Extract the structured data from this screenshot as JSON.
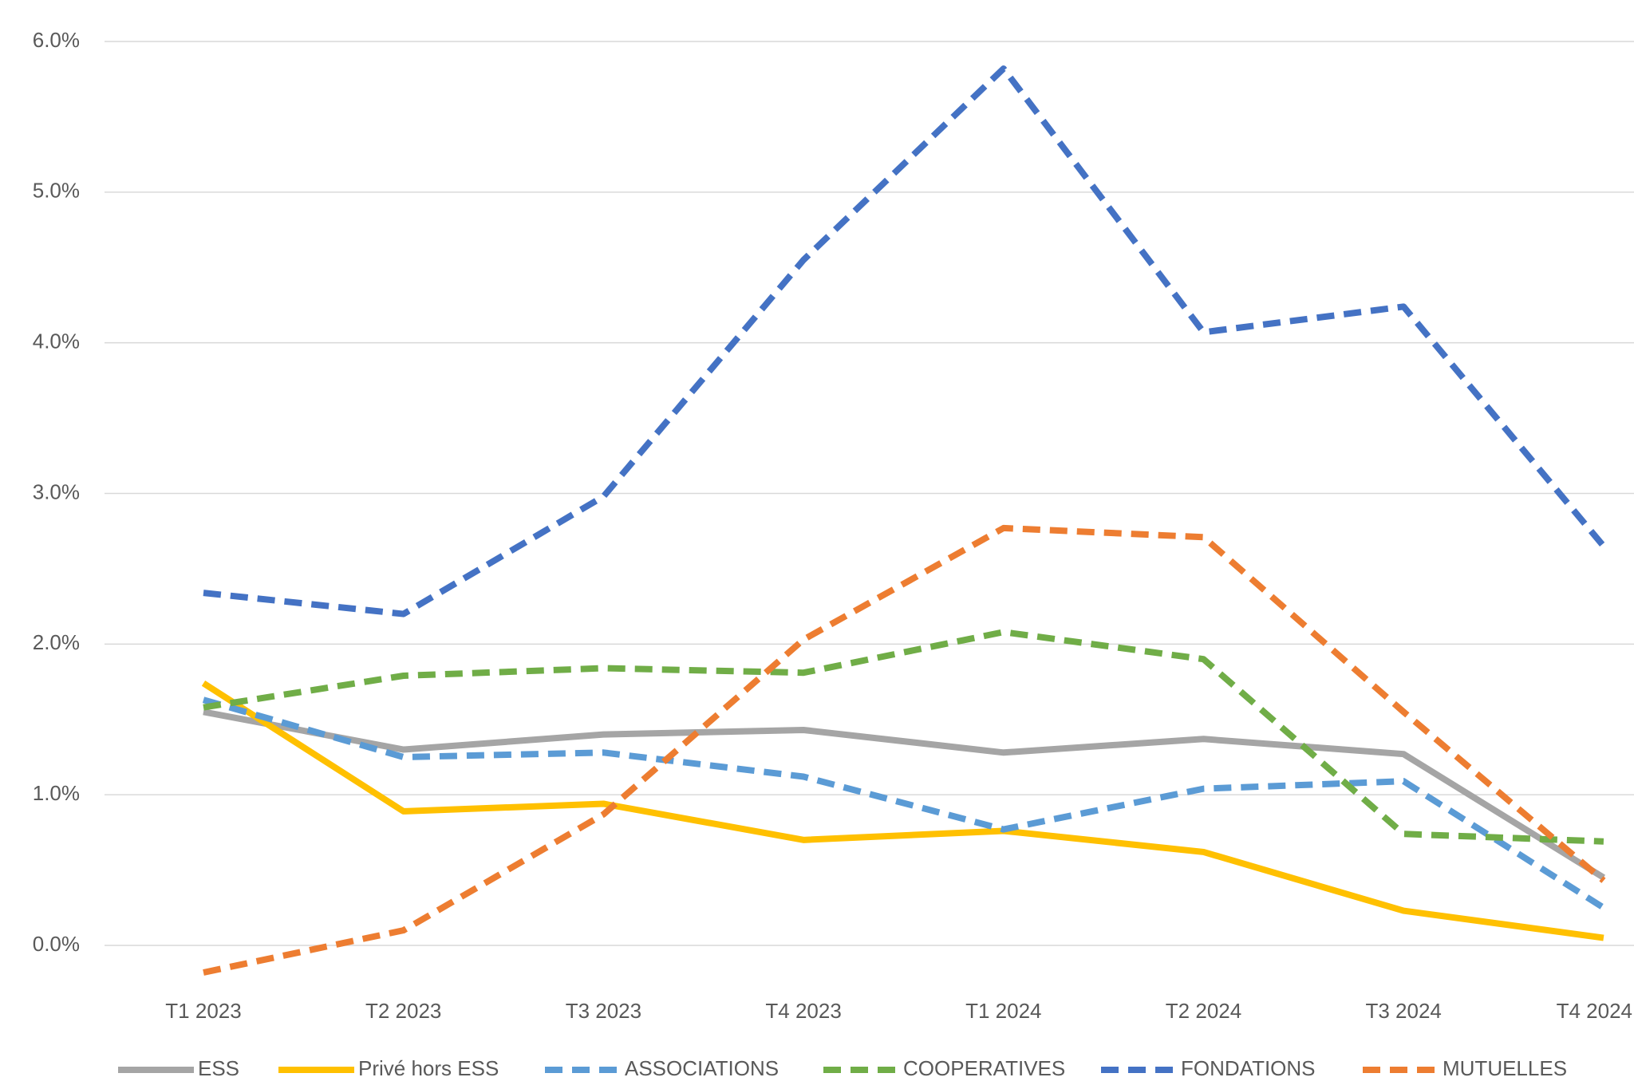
{
  "chart_data": {
    "type": "line",
    "categories": [
      "T1 2023",
      "T2 2023",
      "T3 2023",
      "T4 2023",
      "T1 2024",
      "T2 2024",
      "T3 2024",
      "T4 2024"
    ],
    "ylim": [
      0,
      6
    ],
    "yticks": [
      {
        "value": 0,
        "label": "0.0%"
      },
      {
        "value": 1,
        "label": "1.0%"
      },
      {
        "value": 2,
        "label": "2.0%"
      },
      {
        "value": 3,
        "label": "3.0%"
      },
      {
        "value": 4,
        "label": "4.0%"
      },
      {
        "value": 5,
        "label": "5.0%"
      },
      {
        "value": 6,
        "label": "6.0%"
      }
    ],
    "grid": true,
    "legend": "bottom",
    "series": [
      {
        "name": "ESS",
        "color": "#a5a5a5",
        "dashed": false,
        "values": [
          1.55,
          1.3,
          1.4,
          1.43,
          1.28,
          1.37,
          1.27,
          0.45
        ]
      },
      {
        "name": "Privé hors ESS",
        "color": "#ffc000",
        "dashed": false,
        "values": [
          1.74,
          0.89,
          0.94,
          0.7,
          0.76,
          0.62,
          0.23,
          0.05
        ]
      },
      {
        "name": "ASSOCIATIONS",
        "color": "#5b9bd5",
        "dashed": true,
        "values": [
          1.63,
          1.25,
          1.28,
          1.12,
          0.77,
          1.04,
          1.09,
          0.25
        ]
      },
      {
        "name": "COOPERATIVES",
        "color": "#70ad47",
        "dashed": true,
        "values": [
          1.58,
          1.79,
          1.84,
          1.81,
          2.08,
          1.9,
          0.74,
          0.69
        ]
      },
      {
        "name": "FONDATIONS",
        "color": "#4472c4",
        "dashed": true,
        "values": [
          2.34,
          2.2,
          2.98,
          4.55,
          5.82,
          4.07,
          4.24,
          2.65
        ]
      },
      {
        "name": "MUTUELLES",
        "color": "#ed7d31",
        "dashed": true,
        "values": [
          -0.18,
          0.1,
          0.87,
          2.03,
          2.77,
          2.71,
          1.55,
          0.43
        ]
      }
    ]
  }
}
